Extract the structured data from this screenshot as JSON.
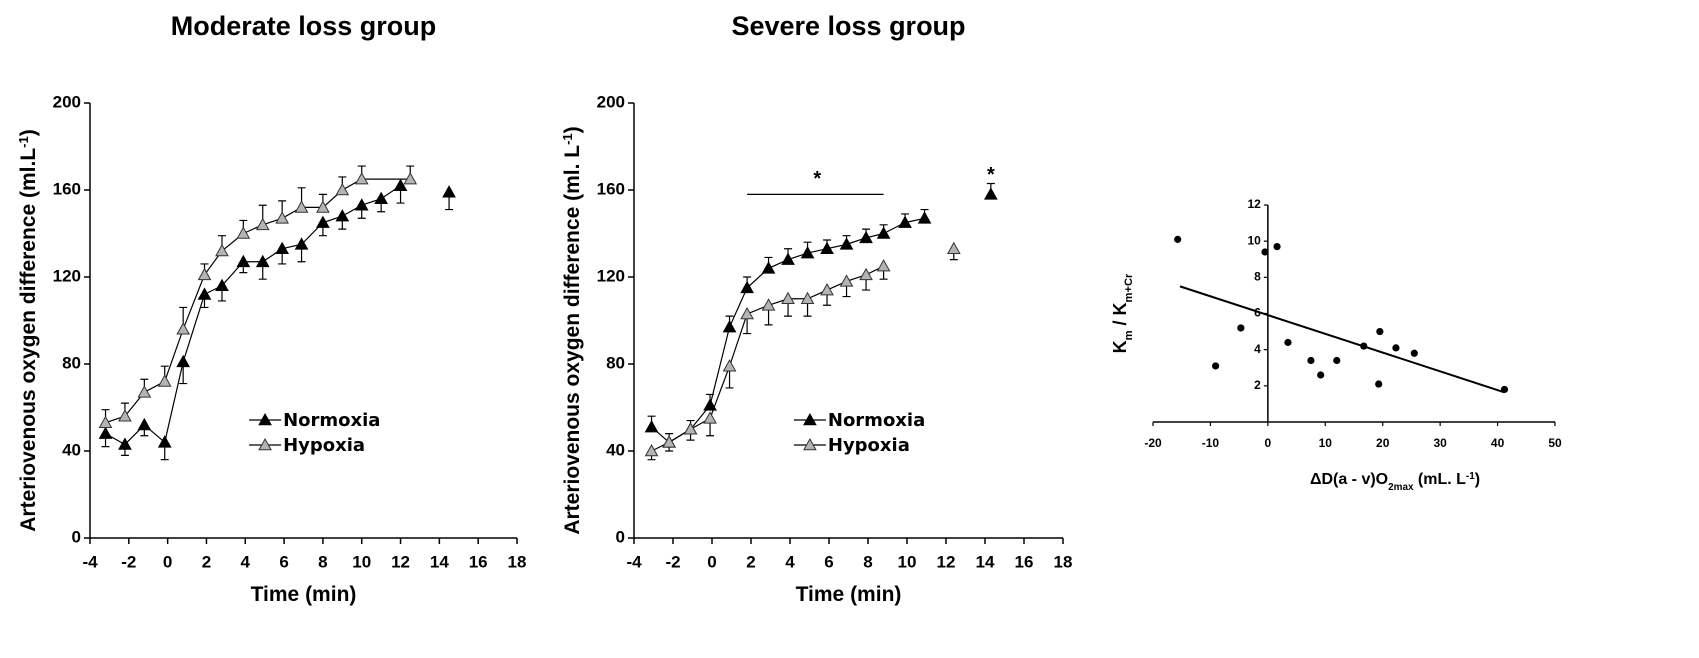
{
  "chart_data": [
    {
      "type": "line",
      "title": "Moderate loss group",
      "xlabel": [
        {
          "text": "Time (min)"
        }
      ],
      "ylabel": [
        {
          "text": "Arteriovenous oxygen difference (ml.L"
        },
        {
          "text": "-1",
          "sup": true
        },
        {
          "text": ")"
        }
      ],
      "xlim": [
        -4,
        18
      ],
      "xticks": [
        -4,
        -2,
        0,
        2,
        4,
        6,
        8,
        10,
        12,
        14,
        16,
        18
      ],
      "ylim": [
        0,
        200
      ],
      "yticks": [
        0,
        40,
        80,
        120,
        160,
        200
      ],
      "legend": "lower right",
      "line_color": "#000",
      "series": [
        {
          "name": "Normoxia",
          "color": "#000",
          "edge": "#000",
          "error_direction": "down",
          "x": [
            -3.2,
            -2.2,
            -1.2,
            -0.15,
            0.8,
            1.9,
            2.8,
            3.9,
            4.9,
            5.9,
            6.9,
            8,
            9,
            10,
            11,
            12,
            null,
            14.5
          ],
          "values": [
            48,
            43,
            52,
            44,
            81,
            112,
            116,
            127,
            127,
            133,
            135,
            145,
            148,
            153,
            156,
            162,
            null,
            159
          ],
          "errors": [
            6,
            5,
            5,
            8,
            10,
            6,
            7,
            5,
            8,
            7,
            8,
            6,
            6,
            6,
            6,
            8,
            null,
            8
          ]
        },
        {
          "name": "Hypoxia",
          "color": "#b4b4b4",
          "edge": "#333",
          "error_direction": "up",
          "x": [
            -3.2,
            -2.2,
            -1.2,
            -0.15,
            0.8,
            1.9,
            2.8,
            3.9,
            4.9,
            5.9,
            6.9,
            8,
            9,
            10,
            12.5
          ],
          "values": [
            53,
            56,
            67,
            72,
            96,
            121,
            132,
            140,
            144,
            147,
            152,
            152,
            160,
            165,
            165
          ],
          "errors": [
            6,
            6,
            6,
            7,
            10,
            5,
            7,
            6,
            9,
            8,
            9,
            6,
            6,
            6,
            6
          ]
        }
      ]
    },
    {
      "type": "line",
      "title": "Severe loss group",
      "xlabel": [
        {
          "text": "Time (min)"
        }
      ],
      "ylabel": [
        {
          "text": "Arteriovenous oxygen difference (ml. L"
        },
        {
          "text": "-1",
          "sup": true
        },
        {
          "text": ")"
        }
      ],
      "xlim": [
        -4,
        18
      ],
      "xticks": [
        -4,
        -2,
        0,
        2,
        4,
        6,
        8,
        10,
        12,
        14,
        16,
        18
      ],
      "ylim": [
        0,
        200
      ],
      "yticks": [
        0,
        40,
        80,
        120,
        160,
        200
      ],
      "legend": "lower right",
      "line_color": "#000",
      "annotations": [
        {
          "text": "*",
          "x": 5.4,
          "y": 165
        },
        {
          "text": "*",
          "x": 14.3,
          "y": 167
        }
      ],
      "sig_line": {
        "x": [
          1.8,
          8.8
        ],
        "y": 158
      },
      "series": [
        {
          "name": "Normoxia",
          "color": "#000",
          "edge": "#000",
          "error_direction": "up",
          "x": [
            -3.1,
            -2.2,
            -1.1,
            -0.1,
            0.9,
            1.8,
            2.9,
            3.9,
            4.9,
            5.9,
            6.9,
            7.9,
            8.8,
            9.9,
            10.9,
            null,
            14.3
          ],
          "values": [
            51,
            44,
            50,
            61,
            97,
            115,
            124,
            128,
            131,
            133,
            135,
            138,
            140,
            145,
            147,
            null,
            158
          ],
          "errors": [
            5,
            4,
            4,
            5,
            5,
            5,
            5,
            5,
            5,
            4,
            4,
            4,
            4,
            4,
            4,
            null,
            5
          ]
        },
        {
          "name": "Hypoxia",
          "color": "#b4b4b4",
          "edge": "#333",
          "error_direction": "down",
          "x": [
            -3.1,
            -2.2,
            -1.1,
            -0.1,
            0.9,
            1.8,
            2.9,
            3.9,
            4.9,
            5.9,
            6.9,
            7.9,
            8.8,
            null,
            12.4
          ],
          "values": [
            40,
            44,
            50,
            55,
            79,
            103,
            107,
            110,
            110,
            114,
            118,
            121,
            125,
            null,
            133
          ],
          "errors": [
            4,
            4,
            5,
            8,
            10,
            9,
            9,
            8,
            8,
            7,
            7,
            7,
            6,
            null,
            5
          ]
        }
      ]
    },
    {
      "type": "scatter",
      "xlabel": [
        {
          "text": "ΔD(a - v)O"
        },
        {
          "text": "2max",
          "sub": true
        },
        {
          "text": "  (mL. L"
        },
        {
          "text": "-1",
          "sup": true
        },
        {
          "text": ")"
        }
      ],
      "ylabel": [
        {
          "text": "K"
        },
        {
          "text": "m",
          "sub": true
        },
        {
          "text": " / K"
        },
        {
          "text": "m+Cr",
          "sub": true
        }
      ],
      "xlim": [
        -20,
        50
      ],
      "xticks": [
        -20,
        -10,
        0,
        10,
        20,
        30,
        40,
        50
      ],
      "ylim": [
        0,
        12
      ],
      "yticks": [
        2,
        4,
        6,
        8,
        10,
        12
      ],
      "color": "#000",
      "x": [
        -15.7,
        -9.1,
        -4.7,
        -0.5,
        1.6,
        3.5,
        7.5,
        9.2,
        12,
        16.7,
        19.3,
        19.5,
        22.3,
        25.5,
        41.2
      ],
      "values": [
        10.1,
        3.1,
        5.2,
        9.4,
        9.7,
        4.4,
        3.4,
        2.6,
        3.4,
        4.2,
        2.1,
        5.0,
        4.1,
        3.8,
        1.8
      ],
      "fit": {
        "x": [
          -15.3,
          41.1
        ],
        "y": [
          7.5,
          1.65
        ]
      }
    }
  ]
}
